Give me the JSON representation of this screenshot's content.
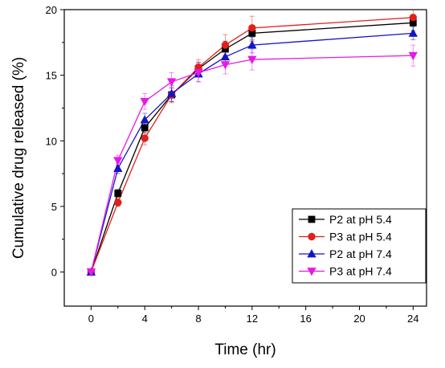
{
  "chart_data": {
    "type": "line",
    "title": "",
    "xlabel": "Time (hr)",
    "ylabel": "Cumulative drug released (%)",
    "xlim": [
      -2,
      25
    ],
    "ylim": [
      -2.6,
      20
    ],
    "x_ticks": [
      0,
      4,
      8,
      12,
      16,
      20,
      24
    ],
    "y_ticks": [
      0,
      5,
      10,
      15,
      20
    ],
    "x_tick_labels": [
      "0",
      "4",
      "8",
      "12",
      "16",
      "20",
      "24"
    ],
    "y_tick_labels": [
      "0",
      "5",
      "10",
      "15",
      "20"
    ],
    "grid": false,
    "error_bars": true,
    "legend_position": "bottom-right",
    "x": [
      0,
      2,
      4,
      6,
      8,
      10,
      12,
      24
    ],
    "series": [
      {
        "name": "P2 at pH 5.4",
        "color": "#000000",
        "marker": "square",
        "values": [
          0,
          6.0,
          11.0,
          13.5,
          15.5,
          17.0,
          18.2,
          19.0
        ],
        "errors": [
          0,
          0.3,
          0.4,
          0.5,
          0.5,
          0.6,
          0.6,
          0.6
        ]
      },
      {
        "name": "P3 at pH 5.4",
        "color": "#e0201b",
        "marker": "circle",
        "values": [
          0,
          5.3,
          10.2,
          13.5,
          15.6,
          17.3,
          18.6,
          19.4
        ],
        "errors": [
          0,
          0.3,
          0.5,
          0.6,
          0.6,
          0.8,
          0.9,
          0.6
        ]
      },
      {
        "name": "P2 at pH 7.4",
        "color": "#1515c8",
        "marker": "triangle-up",
        "values": [
          0,
          7.9,
          11.6,
          13.6,
          15.1,
          16.4,
          17.3,
          18.2
        ],
        "errors": [
          0,
          0.4,
          0.5,
          0.6,
          0.6,
          0.6,
          0.6,
          0.5
        ]
      },
      {
        "name": "P3 at pH 7.4",
        "color": "#e619e6",
        "marker": "triangle-down",
        "values": [
          0,
          8.5,
          13.0,
          14.5,
          15.2,
          15.8,
          16.2,
          16.5
        ],
        "errors": [
          0,
          0.4,
          0.6,
          0.7,
          0.7,
          0.7,
          0.8,
          0.8
        ]
      }
    ]
  }
}
